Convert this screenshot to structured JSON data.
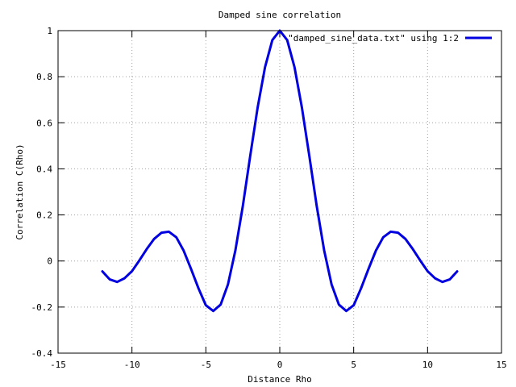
{
  "chart_data": {
    "type": "line",
    "title": "Damped sine correlation",
    "xlabel": "Distance Rho",
    "ylabel": "Correlation C(Rho)",
    "xlim": [
      -15,
      15
    ],
    "ylim": [
      -0.4,
      1
    ],
    "xticks": [
      -15,
      -10,
      -5,
      0,
      5,
      10,
      15
    ],
    "yticks": [
      -0.4,
      -0.2,
      0,
      0.2,
      0.4,
      0.6,
      0.8,
      1
    ],
    "grid": true,
    "legend_position": "top-right",
    "series": [
      {
        "name": "\"damped_sine_data.txt\" using 1:2",
        "color": "#0000e0",
        "x": [
          -12,
          -11.5,
          -11,
          -10.5,
          -10,
          -9.5,
          -9,
          -8.5,
          -8,
          -7.5,
          -7,
          -6.5,
          -6,
          -5.5,
          -5,
          -4.5,
          -4,
          -3.5,
          -3,
          -2.5,
          -2,
          -1.5,
          -1,
          -0.5,
          0,
          0.5,
          1,
          1.5,
          2,
          2.5,
          3,
          3.5,
          4,
          4.5,
          5,
          5.5,
          6,
          5.5,
          6.5,
          7,
          7.5,
          8,
          8.5,
          9,
          9.5,
          10,
          10.5,
          11,
          11.5,
          12
        ],
        "y": [
          -0.045,
          -0.08,
          -0.091,
          -0.075,
          -0.044,
          0.002,
          0.052,
          0.096,
          0.123,
          0.127,
          0.103,
          0.045,
          -0.035,
          -0.119,
          -0.192,
          -0.217,
          -0.189,
          -0.101,
          0.047,
          0.239,
          0.455,
          0.665,
          0.841,
          0.959,
          1.0,
          0.959,
          0.841,
          0.665,
          0.455,
          0.239,
          0.047,
          -0.101,
          -0.189,
          -0.217,
          -0.192,
          -0.119,
          -0.035,
          -0.119,
          0.045,
          0.103,
          0.127,
          0.123,
          0.096,
          0.052,
          0.002,
          -0.044,
          -0.075,
          -0.091,
          -0.08,
          -0.045
        ]
      }
    ]
  }
}
